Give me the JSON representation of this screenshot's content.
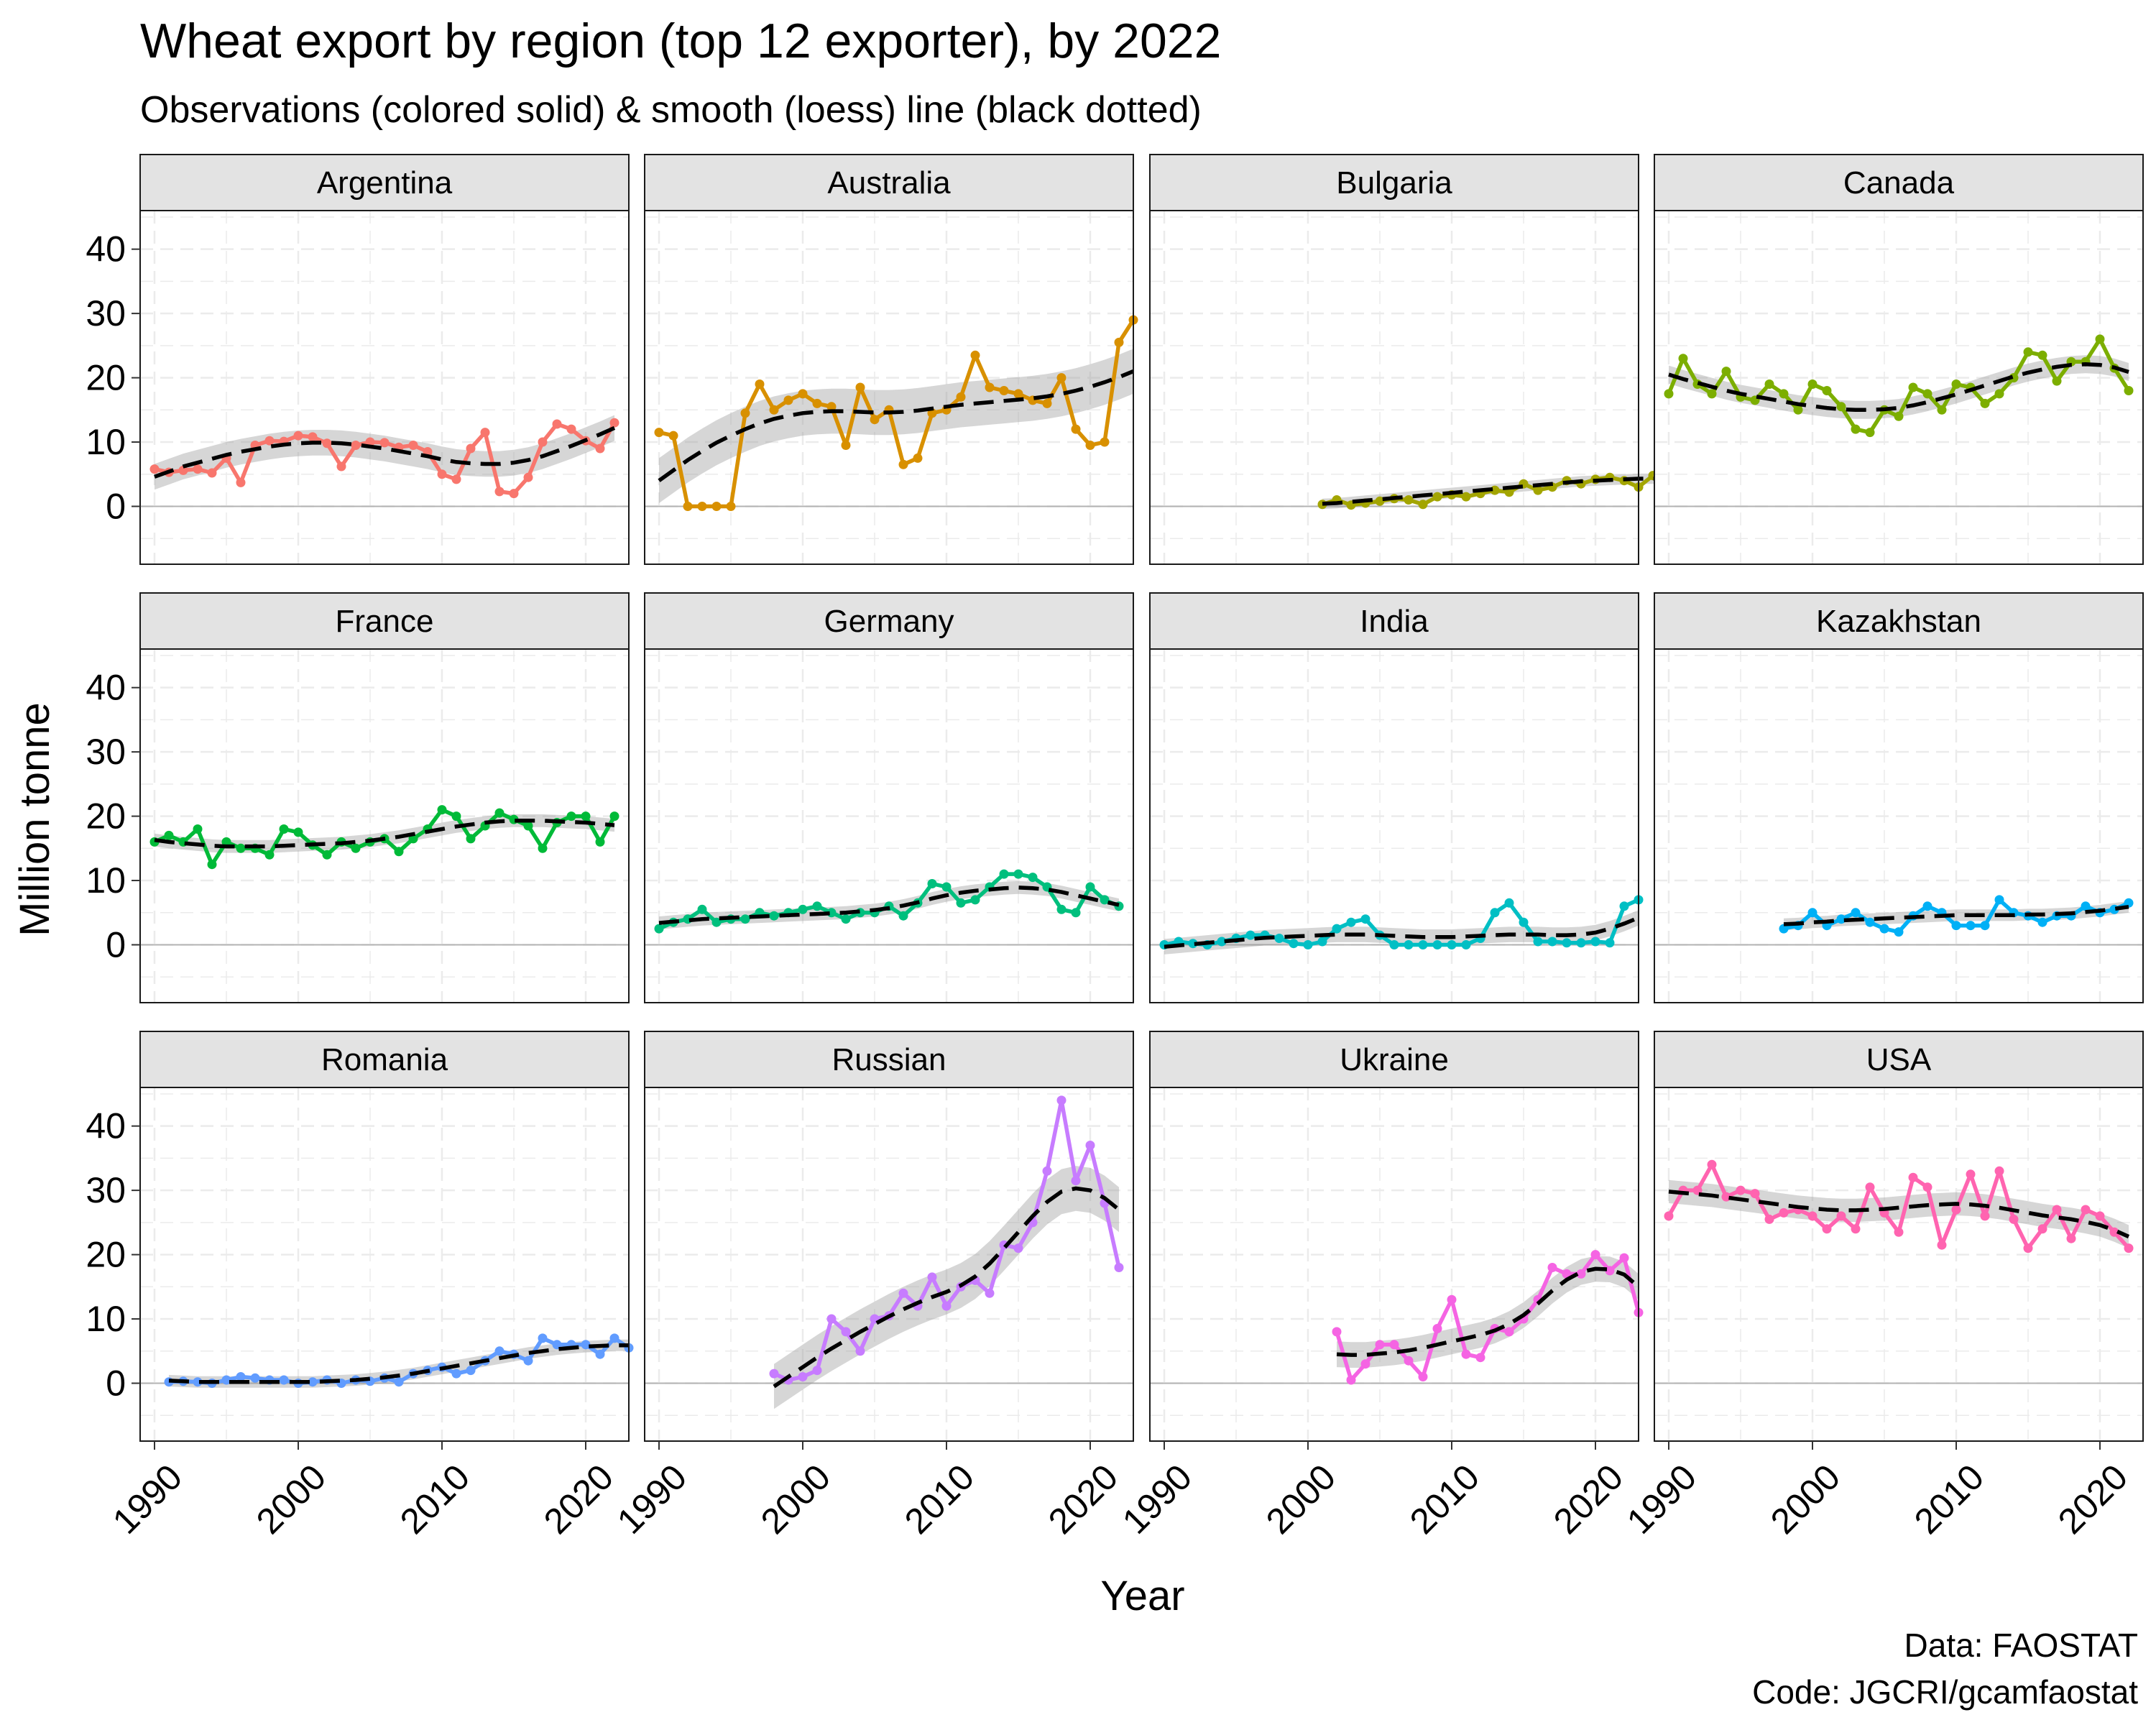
{
  "title": "Wheat export by region (top 12 exporter), by 2022",
  "subtitle": "Observations (colored solid) & smooth (loess) line (black dotted)",
  "caption": [
    "Data: FAOSTAT",
    "Code: JGCRI/gcamfaostat"
  ],
  "chart_data": {
    "type": "line",
    "facet": "wrap 4 columns x 3 rows, shared axes",
    "xlabel": "Year",
    "ylabel": "Million tonne",
    "xlim": [
      1989,
      2023
    ],
    "ylim": [
      -9,
      46
    ],
    "x_ticks": [
      1990,
      2000,
      2010,
      2020
    ],
    "x_tick_labels": [
      "1990",
      "2000",
      "2010",
      "2020"
    ],
    "y_ticks": [
      0,
      10,
      20,
      30,
      40
    ],
    "y_tick_labels": [
      "0",
      "10",
      "20",
      "30",
      "40"
    ],
    "grid": true,
    "theme": "bw",
    "series": [
      {
        "name": "Argentina",
        "color": "#F8766D",
        "start": 1990,
        "values": [
          5.8,
          5.3,
          5.6,
          5.8,
          5.2,
          7.5,
          3.7,
          9.5,
          10.2,
          10.1,
          11.0,
          10.8,
          9.8,
          6.2,
          9.5,
          10.0,
          9.9,
          9.2,
          9.5,
          8.5,
          5.0,
          4.2,
          9.0,
          11.5,
          2.3,
          2.0,
          4.5,
          10.0,
          12.8,
          12.0,
          10.2,
          9.0,
          13.0
        ],
        "smooth": [
          4.6,
          5.4,
          6.2,
          6.8,
          7.4,
          8.0,
          8.5,
          8.9,
          9.3,
          9.6,
          9.8,
          9.9,
          9.9,
          9.8,
          9.6,
          9.3,
          9.0,
          8.6,
          8.2,
          7.8,
          7.3,
          6.9,
          6.7,
          6.6,
          6.6,
          6.8,
          7.2,
          7.8,
          8.6,
          9.4,
          10.3,
          11.2,
          12.2
        ],
        "band": 2.0
      },
      {
        "name": "Australia",
        "color": "#D89000",
        "start": 1990,
        "values": [
          11.5,
          11.0,
          0.0,
          0.0,
          0.0,
          0.0,
          14.5,
          19.0,
          15.0,
          16.5,
          17.5,
          16.0,
          15.5,
          9.5,
          18.5,
          13.5,
          15.0,
          6.5,
          7.5,
          14.5,
          15.0,
          17.0,
          23.5,
          18.5,
          18.0,
          17.5,
          16.5,
          16.0,
          20.0,
          12.0,
          9.5,
          10.0,
          25.5,
          29.0
        ],
        "smooth": [
          4.0,
          5.6,
          7.2,
          8.6,
          9.9,
          11.0,
          12.0,
          12.9,
          13.6,
          14.1,
          14.5,
          14.7,
          14.8,
          14.8,
          14.7,
          14.6,
          14.6,
          14.7,
          14.9,
          15.2,
          15.5,
          15.8,
          16.0,
          16.2,
          16.4,
          16.6,
          16.8,
          17.1,
          17.5,
          18.0,
          18.6,
          19.3,
          20.1,
          21.0
        ],
        "band": 3.5
      },
      {
        "name": "Bulgaria",
        "color": "#A3A500",
        "start": 2001,
        "values": [
          0.3,
          1.0,
          0.2,
          0.5,
          0.8,
          1.2,
          1.0,
          0.3,
          1.5,
          1.8,
          1.5,
          2.0,
          2.5,
          2.2,
          3.5,
          2.5,
          3.0,
          4.0,
          3.5,
          4.2,
          4.5,
          4.0,
          3.0,
          4.8,
          4.2
        ],
        "smooth": [
          0.4,
          0.5,
          0.7,
          0.9,
          1.1,
          1.3,
          1.5,
          1.7,
          1.9,
          2.1,
          2.3,
          2.5,
          2.7,
          2.9,
          3.1,
          3.3,
          3.5,
          3.7,
          3.9,
          4.0,
          4.1,
          4.2,
          4.3,
          4.3,
          4.3
        ],
        "band": 0.8
      },
      {
        "name": "Canada",
        "color": "#7CAE00",
        "start": 1990,
        "values": [
          17.5,
          23.0,
          19.0,
          17.5,
          21.0,
          17.0,
          16.5,
          19.0,
          17.5,
          15.0,
          19.0,
          18.0,
          15.5,
          12.0,
          11.5,
          15.0,
          14.0,
          18.5,
          17.5,
          15.0,
          19.0,
          18.5,
          16.0,
          17.5,
          20.0,
          24.0,
          23.5,
          19.5,
          22.5,
          22.5,
          26.0,
          21.5,
          18.0
        ],
        "smooth": [
          20.5,
          19.8,
          19.2,
          18.6,
          18.0,
          17.5,
          17.1,
          16.7,
          16.3,
          15.9,
          15.6,
          15.3,
          15.1,
          15.0,
          15.0,
          15.1,
          15.3,
          15.7,
          16.2,
          16.8,
          17.4,
          18.1,
          18.8,
          19.5,
          20.2,
          20.8,
          21.3,
          21.7,
          22.0,
          22.1,
          22.0,
          21.6,
          20.9
        ],
        "band": 1.4
      },
      {
        "name": "France",
        "color": "#00BA38",
        "start": 1990,
        "values": [
          16.0,
          17.0,
          16.0,
          18.0,
          12.5,
          16.0,
          15.0,
          15.0,
          14.0,
          18.0,
          17.5,
          15.5,
          14.0,
          16.0,
          15.0,
          16.0,
          16.5,
          14.5,
          16.5,
          18.0,
          21.0,
          20.0,
          16.5,
          18.5,
          20.5,
          19.5,
          18.5,
          15.0,
          19.0,
          20.0,
          20.0,
          16.0,
          20.0
        ],
        "smooth": [
          16.3,
          16.0,
          15.8,
          15.6,
          15.4,
          15.3,
          15.3,
          15.3,
          15.3,
          15.4,
          15.5,
          15.6,
          15.7,
          15.8,
          16.0,
          16.2,
          16.5,
          16.8,
          17.2,
          17.6,
          18.0,
          18.4,
          18.7,
          19.0,
          19.2,
          19.3,
          19.3,
          19.3,
          19.2,
          19.1,
          19.0,
          18.8,
          18.6
        ],
        "band": 1.0
      },
      {
        "name": "Germany",
        "color": "#00BF7D",
        "start": 1990,
        "values": [
          2.5,
          3.5,
          4.0,
          5.5,
          3.5,
          4.0,
          4.0,
          5.0,
          4.5,
          5.0,
          5.5,
          6.0,
          5.0,
          4.0,
          5.0,
          5.0,
          6.0,
          4.5,
          6.5,
          9.5,
          9.0,
          6.5,
          7.0,
          9.0,
          11.0,
          11.0,
          10.5,
          9.0,
          5.5,
          5.0,
          9.0,
          7.0,
          6.0
        ],
        "smooth": [
          3.4,
          3.6,
          3.8,
          4.0,
          4.1,
          4.2,
          4.3,
          4.4,
          4.5,
          4.6,
          4.7,
          4.8,
          4.9,
          5.0,
          5.2,
          5.4,
          5.7,
          6.1,
          6.6,
          7.2,
          7.7,
          8.1,
          8.4,
          8.6,
          8.8,
          8.9,
          8.8,
          8.6,
          8.2,
          7.7,
          7.2,
          6.7,
          6.2
        ],
        "band": 1.0
      },
      {
        "name": "India",
        "color": "#00BFC4",
        "start": 1990,
        "values": [
          0.0,
          0.5,
          0.2,
          0.0,
          0.5,
          1.0,
          1.5,
          1.5,
          1.0,
          0.2,
          0.0,
          0.5,
          2.5,
          3.5,
          4.0,
          1.5,
          0.0,
          0.0,
          0.0,
          0.0,
          0.0,
          0.0,
          1.0,
          5.0,
          6.5,
          3.5,
          0.5,
          0.5,
          0.3,
          0.3,
          0.5,
          0.3,
          6.0,
          7.0
        ],
        "smooth": [
          -0.3,
          -0.1,
          0.1,
          0.3,
          0.5,
          0.7,
          0.9,
          1.1,
          1.2,
          1.3,
          1.4,
          1.5,
          1.6,
          1.6,
          1.6,
          1.5,
          1.4,
          1.3,
          1.2,
          1.2,
          1.2,
          1.3,
          1.4,
          1.5,
          1.6,
          1.6,
          1.6,
          1.5,
          1.5,
          1.6,
          1.9,
          2.5,
          3.3,
          4.2
        ],
        "band": 1.2
      },
      {
        "name": "Kazakhstan",
        "color": "#00B0F6",
        "start": 1998,
        "values": [
          2.5,
          3.0,
          5.0,
          3.0,
          4.0,
          5.0,
          3.5,
          2.5,
          2.0,
          4.5,
          6.0,
          5.0,
          3.0,
          3.0,
          3.0,
          7.0,
          5.0,
          4.5,
          3.5,
          4.5,
          4.5,
          6.0,
          5.0,
          5.5,
          6.5
        ],
        "smooth": [
          3.2,
          3.3,
          3.5,
          3.6,
          3.8,
          3.9,
          4.0,
          4.1,
          4.2,
          4.3,
          4.4,
          4.5,
          4.6,
          4.6,
          4.6,
          4.6,
          4.6,
          4.7,
          4.7,
          4.8,
          4.9,
          5.1,
          5.3,
          5.6,
          5.9
        ],
        "band": 0.9
      },
      {
        "name": "Romania",
        "color": "#619CFF",
        "start": 1991,
        "values": [
          0.2,
          0.3,
          0.2,
          0.0,
          0.5,
          1.0,
          0.8,
          0.5,
          0.5,
          0.0,
          0.2,
          0.5,
          0.0,
          0.5,
          0.3,
          0.8,
          0.2,
          1.5,
          2.0,
          2.5,
          1.5,
          2.0,
          3.5,
          5.0,
          4.5,
          3.5,
          7.0,
          6.0,
          6.0,
          6.0,
          4.5,
          7.0,
          5.5
        ],
        "smooth": [
          0.4,
          0.3,
          0.2,
          0.2,
          0.2,
          0.2,
          0.2,
          0.2,
          0.2,
          0.2,
          0.2,
          0.3,
          0.4,
          0.5,
          0.7,
          0.9,
          1.2,
          1.5,
          1.9,
          2.3,
          2.7,
          3.1,
          3.5,
          3.9,
          4.3,
          4.7,
          5.0,
          5.3,
          5.5,
          5.7,
          5.8,
          5.9,
          5.9
        ],
        "band": 0.9
      },
      {
        "name": "Russian",
        "color": "#C77CFF",
        "start": 1998,
        "values": [
          1.5,
          0.5,
          1.0,
          2.0,
          10.0,
          8.0,
          5.0,
          10.0,
          10.5,
          14.0,
          12.0,
          16.5,
          12.0,
          15.0,
          16.0,
          14.0,
          21.5,
          21.0,
          25.0,
          33.0,
          44.0,
          31.5,
          37.0,
          28.0,
          18.0
        ],
        "smooth": [
          -0.5,
          1.0,
          2.5,
          4.0,
          5.4,
          6.7,
          8.0,
          9.2,
          10.4,
          11.5,
          12.5,
          13.4,
          14.2,
          15.2,
          16.6,
          18.6,
          21.0,
          23.5,
          26.0,
          28.2,
          29.8,
          30.3,
          30.0,
          28.8,
          27.0
        ],
        "band": 3.5
      },
      {
        "name": "Ukraine",
        "color": "#F564E3",
        "start": 2002,
        "values": [
          8.0,
          0.5,
          3.0,
          6.0,
          6.0,
          3.5,
          1.0,
          8.5,
          13.0,
          4.5,
          4.0,
          8.5,
          8.0,
          10.0,
          13.0,
          18.0,
          17.0,
          17.0,
          20.0,
          17.5,
          19.5,
          11.0
        ],
        "smooth": [
          4.5,
          4.4,
          4.4,
          4.6,
          4.8,
          5.1,
          5.5,
          6.0,
          6.5,
          7.0,
          7.5,
          8.2,
          9.2,
          10.6,
          12.4,
          14.4,
          16.1,
          17.3,
          17.8,
          17.7,
          16.9,
          15.0
        ],
        "band": 2.0
      },
      {
        "name": "USA",
        "color": "#FF64B0",
        "start": 1990,
        "values": [
          26.0,
          30.0,
          30.0,
          34.0,
          29.0,
          30.0,
          29.5,
          25.5,
          26.5,
          27.0,
          26.0,
          24.0,
          26.0,
          24.0,
          30.5,
          26.5,
          23.5,
          32.0,
          30.5,
          21.5,
          27.0,
          32.5,
          26.0,
          33.0,
          25.5,
          21.0,
          24.0,
          27.0,
          22.5,
          27.0,
          26.0,
          23.5,
          21.0
        ],
        "smooth": [
          29.8,
          29.6,
          29.4,
          29.2,
          28.9,
          28.6,
          28.3,
          28.0,
          27.7,
          27.4,
          27.2,
          27.0,
          26.9,
          26.9,
          27.0,
          27.1,
          27.3,
          27.5,
          27.7,
          27.8,
          27.9,
          27.8,
          27.6,
          27.3,
          26.9,
          26.5,
          26.1,
          25.8,
          25.5,
          25.1,
          24.6,
          23.8,
          22.8
        ],
        "band": 1.8
      }
    ]
  }
}
